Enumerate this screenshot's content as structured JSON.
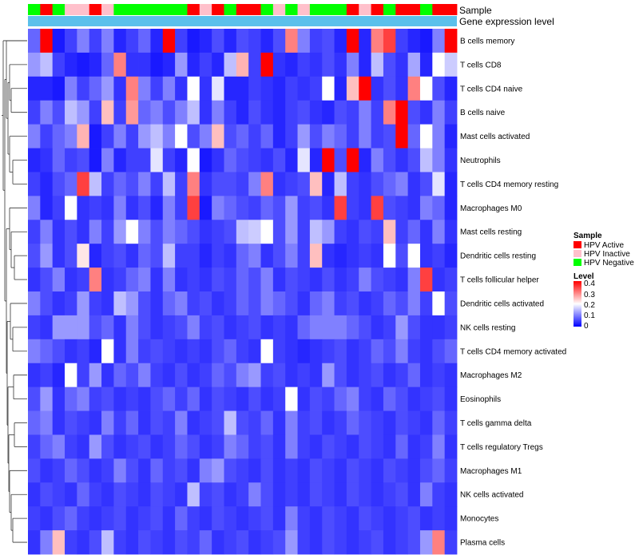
{
  "chart_data": {
    "type": "heatmap",
    "title": "",
    "annotation_tracks": [
      "Sample",
      "Gene expression level"
    ],
    "rows": [
      "B cells memory",
      "T cells CD8",
      "T cells CD4 naive",
      "B cells naive",
      "Mast cells activated",
      "Neutrophils",
      "T cells CD4 memory resting",
      "Macrophages M0",
      "Mast cells resting",
      "Dendritic cells resting",
      "T cells follicular helper",
      "Dendritic cells activated",
      "NK cells resting",
      "T cells CD4 memory activated",
      "Macrophages M2",
      "Eosinophils",
      "T cells gamma delta",
      "T cells regulatory  Tregs",
      "Macrophages M1",
      "NK cells activated",
      "Monocytes",
      "Plasma cells"
    ],
    "sample_groups": [
      "N",
      "A",
      "N",
      "I",
      "I",
      "A",
      "I",
      "N",
      "N",
      "N",
      "N",
      "N",
      "N",
      "A",
      "I",
      "A",
      "N",
      "A",
      "A",
      "N",
      "I",
      "N",
      "I",
      "N",
      "N",
      "N",
      "A",
      "I",
      "A",
      "N",
      "A",
      "A",
      "N",
      "A",
      "A"
    ],
    "sample_legend": {
      "title": "Sample",
      "items": [
        {
          "key": "A",
          "label": "HPV Active",
          "color": "#ff0000"
        },
        {
          "key": "I",
          "label": "HPV Inactive",
          "color": "#ffc0cb"
        },
        {
          "key": "N",
          "label": "HPV Negative",
          "color": "#00ff00"
        }
      ]
    },
    "expression_track_color": "#5bc0eb",
    "level_legend": {
      "title": "Level",
      "ticks": [
        "0.4",
        "0.3",
        "0.2",
        "0.1",
        "0"
      ],
      "min": 0,
      "max": 0.4,
      "colors": [
        "#0000ff",
        "#ffffff",
        "#ff0000"
      ]
    },
    "values": [
      [
        0.08,
        0.4,
        0.02,
        0.05,
        0.1,
        0.05,
        0.1,
        0.03,
        0.05,
        0.08,
        0.03,
        0.4,
        0.05,
        0.02,
        0.03,
        0.06,
        0.03,
        0.06,
        0.05,
        0.03,
        0.06,
        0.3,
        0.1,
        0.05,
        0.06,
        0.03,
        0.4,
        0.03,
        0.3,
        0.35,
        0.05,
        0.03,
        0.02,
        0.1,
        0.4
      ],
      [
        0.12,
        0.15,
        0.05,
        0.03,
        0.02,
        0.03,
        0.08,
        0.3,
        0.04,
        0.04,
        0.02,
        0.03,
        0.12,
        0.03,
        0.05,
        0.03,
        0.15,
        0.26,
        0.05,
        0.4,
        0.04,
        0.03,
        0.05,
        0.04,
        0.06,
        0.04,
        0.1,
        0.03,
        0.15,
        0.06,
        0.04,
        0.13,
        0.03,
        0.2,
        0.16
      ],
      [
        0.03,
        0.03,
        0.02,
        0.1,
        0.05,
        0.08,
        0.12,
        0.04,
        0.3,
        0.1,
        0.05,
        0.1,
        0.04,
        0.2,
        0.04,
        0.18,
        0.03,
        0.03,
        0.05,
        0.04,
        0.03,
        0.05,
        0.04,
        0.05,
        0.2,
        0.03,
        0.25,
        0.4,
        0.04,
        0.06,
        0.04,
        0.3,
        0.2,
        0.06,
        0.03
      ],
      [
        0.05,
        0.1,
        0.06,
        0.15,
        0.12,
        0.05,
        0.25,
        0.05,
        0.28,
        0.08,
        0.1,
        0.06,
        0.1,
        0.15,
        0.04,
        0.1,
        0.05,
        0.03,
        0.06,
        0.04,
        0.03,
        0.05,
        0.06,
        0.04,
        0.03,
        0.06,
        0.05,
        0.1,
        0.05,
        0.3,
        0.4,
        0.06,
        0.04,
        0.1,
        0.05
      ],
      [
        0.1,
        0.05,
        0.08,
        0.1,
        0.26,
        0.02,
        0.05,
        0.1,
        0.05,
        0.12,
        0.15,
        0.1,
        0.2,
        0.06,
        0.1,
        0.25,
        0.06,
        0.08,
        0.05,
        0.08,
        0.03,
        0.05,
        0.12,
        0.06,
        0.1,
        0.08,
        0.05,
        0.1,
        0.05,
        0.06,
        0.4,
        0.08,
        0.2,
        0.1,
        0.03
      ],
      [
        0.03,
        0.04,
        0.08,
        0.05,
        0.06,
        0.02,
        0.1,
        0.03,
        0.05,
        0.05,
        0.18,
        0.05,
        0.03,
        0.2,
        0.02,
        0.04,
        0.08,
        0.06,
        0.05,
        0.04,
        0.06,
        0.03,
        0.18,
        0.03,
        0.4,
        0.06,
        0.4,
        0.03,
        0.1,
        0.06,
        0.04,
        0.06,
        0.15,
        0.1,
        0.04
      ],
      [
        0.05,
        0.03,
        0.06,
        0.08,
        0.35,
        0.15,
        0.05,
        0.08,
        0.06,
        0.1,
        0.05,
        0.15,
        0.05,
        0.3,
        0.04,
        0.06,
        0.06,
        0.05,
        0.1,
        0.3,
        0.04,
        0.05,
        0.06,
        0.25,
        0.03,
        0.15,
        0.05,
        0.04,
        0.06,
        0.08,
        0.1,
        0.04,
        0.06,
        0.18,
        0.03
      ],
      [
        0.1,
        0.03,
        0.05,
        0.2,
        0.04,
        0.05,
        0.04,
        0.1,
        0.04,
        0.06,
        0.03,
        0.1,
        0.05,
        0.35,
        0.02,
        0.1,
        0.08,
        0.06,
        0.05,
        0.08,
        0.06,
        0.12,
        0.05,
        0.06,
        0.04,
        0.35,
        0.05,
        0.04,
        0.35,
        0.06,
        0.05,
        0.04,
        0.1,
        0.08,
        0.03
      ],
      [
        0.05,
        0.1,
        0.04,
        0.06,
        0.04,
        0.1,
        0.05,
        0.12,
        0.2,
        0.1,
        0.06,
        0.1,
        0.08,
        0.06,
        0.04,
        0.05,
        0.06,
        0.15,
        0.16,
        0.2,
        0.06,
        0.12,
        0.05,
        0.15,
        0.12,
        0.05,
        0.04,
        0.06,
        0.05,
        0.25,
        0.05,
        0.08,
        0.04,
        0.1,
        0.04
      ],
      [
        0.06,
        0.12,
        0.04,
        0.06,
        0.22,
        0.03,
        0.05,
        0.06,
        0.04,
        0.08,
        0.06,
        0.15,
        0.05,
        0.05,
        0.03,
        0.05,
        0.04,
        0.08,
        0.1,
        0.04,
        0.06,
        0.1,
        0.05,
        0.25,
        0.04,
        0.03,
        0.04,
        0.05,
        0.04,
        0.2,
        0.06,
        0.2,
        0.04,
        0.05,
        0.03
      ],
      [
        0.04,
        0.06,
        0.1,
        0.04,
        0.05,
        0.3,
        0.04,
        0.05,
        0.08,
        0.1,
        0.04,
        0.1,
        0.04,
        0.05,
        0.04,
        0.06,
        0.05,
        0.08,
        0.06,
        0.1,
        0.04,
        0.06,
        0.05,
        0.04,
        0.06,
        0.04,
        0.05,
        0.1,
        0.06,
        0.05,
        0.04,
        0.1,
        0.35,
        0.04,
        0.05
      ],
      [
        0.1,
        0.06,
        0.04,
        0.05,
        0.12,
        0.05,
        0.04,
        0.15,
        0.12,
        0.06,
        0.04,
        0.08,
        0.1,
        0.05,
        0.06,
        0.04,
        0.05,
        0.08,
        0.06,
        0.1,
        0.08,
        0.06,
        0.04,
        0.08,
        0.1,
        0.05,
        0.06,
        0.04,
        0.05,
        0.08,
        0.06,
        0.1,
        0.05,
        0.2,
        0.06
      ],
      [
        0.05,
        0.04,
        0.12,
        0.12,
        0.12,
        0.06,
        0.08,
        0.04,
        0.1,
        0.06,
        0.04,
        0.05,
        0.06,
        0.1,
        0.05,
        0.06,
        0.04,
        0.05,
        0.06,
        0.04,
        0.05,
        0.04,
        0.08,
        0.1,
        0.1,
        0.1,
        0.08,
        0.06,
        0.04,
        0.05,
        0.12,
        0.06,
        0.04,
        0.04,
        0.05
      ],
      [
        0.1,
        0.08,
        0.06,
        0.04,
        0.05,
        0.03,
        0.2,
        0.04,
        0.1,
        0.05,
        0.06,
        0.05,
        0.04,
        0.05,
        0.04,
        0.06,
        0.08,
        0.05,
        0.04,
        0.2,
        0.05,
        0.04,
        0.03,
        0.04,
        0.05,
        0.06,
        0.04,
        0.05,
        0.08,
        0.06,
        0.1,
        0.05,
        0.04,
        0.06,
        0.08
      ],
      [
        0.04,
        0.05,
        0.03,
        0.2,
        0.05,
        0.12,
        0.04,
        0.08,
        0.06,
        0.1,
        0.05,
        0.04,
        0.06,
        0.04,
        0.05,
        0.08,
        0.06,
        0.1,
        0.12,
        0.05,
        0.06,
        0.04,
        0.05,
        0.04,
        0.12,
        0.06,
        0.04,
        0.05,
        0.06,
        0.04,
        0.05,
        0.08,
        0.04,
        0.05,
        0.04
      ],
      [
        0.06,
        0.12,
        0.04,
        0.08,
        0.1,
        0.05,
        0.06,
        0.04,
        0.05,
        0.04,
        0.06,
        0.08,
        0.05,
        0.08,
        0.04,
        0.06,
        0.05,
        0.04,
        0.06,
        0.04,
        0.05,
        0.2,
        0.04,
        0.06,
        0.05,
        0.08,
        0.1,
        0.05,
        0.04,
        0.08,
        0.06,
        0.04,
        0.05,
        0.06,
        0.04
      ],
      [
        0.08,
        0.1,
        0.04,
        0.06,
        0.05,
        0.04,
        0.1,
        0.05,
        0.08,
        0.04,
        0.06,
        0.05,
        0.1,
        0.04,
        0.05,
        0.06,
        0.15,
        0.06,
        0.05,
        0.08,
        0.04,
        0.1,
        0.05,
        0.06,
        0.04,
        0.05,
        0.08,
        0.06,
        0.05,
        0.04,
        0.06,
        0.05,
        0.04,
        0.08,
        0.05
      ],
      [
        0.05,
        0.08,
        0.1,
        0.05,
        0.04,
        0.12,
        0.06,
        0.04,
        0.05,
        0.06,
        0.04,
        0.05,
        0.08,
        0.06,
        0.04,
        0.05,
        0.1,
        0.08,
        0.05,
        0.06,
        0.04,
        0.1,
        0.05,
        0.04,
        0.06,
        0.05,
        0.04,
        0.06,
        0.05,
        0.04,
        0.08,
        0.04,
        0.05,
        0.1,
        0.04
      ],
      [
        0.06,
        0.04,
        0.05,
        0.08,
        0.06,
        0.04,
        0.05,
        0.1,
        0.06,
        0.04,
        0.08,
        0.05,
        0.06,
        0.04,
        0.1,
        0.12,
        0.06,
        0.05,
        0.04,
        0.06,
        0.04,
        0.05,
        0.04,
        0.06,
        0.05,
        0.04,
        0.06,
        0.05,
        0.04,
        0.06,
        0.05,
        0.04,
        0.06,
        0.08,
        0.05
      ],
      [
        0.04,
        0.06,
        0.05,
        0.04,
        0.08,
        0.05,
        0.04,
        0.06,
        0.05,
        0.04,
        0.06,
        0.05,
        0.04,
        0.15,
        0.05,
        0.06,
        0.04,
        0.05,
        0.1,
        0.06,
        0.04,
        0.05,
        0.04,
        0.06,
        0.05,
        0.04,
        0.06,
        0.05,
        0.04,
        0.05,
        0.06,
        0.04,
        0.1,
        0.05,
        0.04
      ],
      [
        0.05,
        0.04,
        0.06,
        0.08,
        0.05,
        0.04,
        0.05,
        0.06,
        0.04,
        0.05,
        0.06,
        0.04,
        0.08,
        0.05,
        0.04,
        0.06,
        0.05,
        0.04,
        0.05,
        0.06,
        0.04,
        0.1,
        0.05,
        0.04,
        0.06,
        0.05,
        0.04,
        0.06,
        0.05,
        0.04,
        0.05,
        0.06,
        0.04,
        0.05,
        0.04
      ],
      [
        0.04,
        0.1,
        0.25,
        0.05,
        0.04,
        0.06,
        0.15,
        0.05,
        0.04,
        0.06,
        0.05,
        0.04,
        0.06,
        0.05,
        0.08,
        0.04,
        0.05,
        0.06,
        0.04,
        0.05,
        0.06,
        0.12,
        0.05,
        0.04,
        0.06,
        0.05,
        0.04,
        0.05,
        0.06,
        0.04,
        0.05,
        0.06,
        0.12,
        0.3,
        0.05
      ]
    ]
  }
}
